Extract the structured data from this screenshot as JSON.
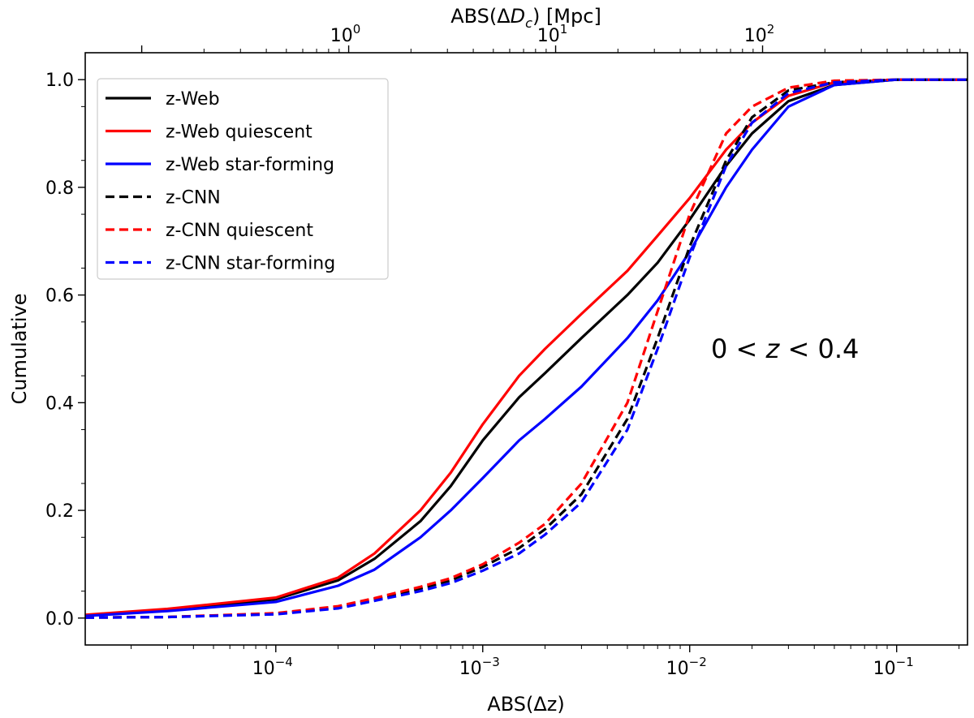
{
  "chart_data": {
    "type": "line",
    "x_scale": "log",
    "xlabel": "ABS(Δz)",
    "ylabel": "Cumulative",
    "top_axis_label": "ABS(ΔD_c) [Mpc]",
    "xlim": [
      1.2e-05,
      0.22
    ],
    "ylim": [
      -0.05,
      1.05
    ],
    "x_ticks": [
      {
        "value": 0.0001,
        "base": "10",
        "exp": "−4"
      },
      {
        "value": 0.001,
        "base": "10",
        "exp": "−3"
      },
      {
        "value": 0.01,
        "base": "10",
        "exp": "−2"
      },
      {
        "value": 0.1,
        "base": "10",
        "exp": "−1"
      }
    ],
    "top_ticks": [
      {
        "value": 1,
        "dz": 0.000225,
        "base": "10",
        "exp": "0"
      },
      {
        "value": 10,
        "dz": 0.00225,
        "base": "10",
        "exp": "1"
      },
      {
        "value": 100,
        "dz": 0.0225,
        "base": "10",
        "exp": "2"
      }
    ],
    "y_ticks": [
      "0.0",
      "0.2",
      "0.4",
      "0.6",
      "0.8",
      "1.0"
    ],
    "y_tick_values": [
      0.0,
      0.2,
      0.4,
      0.6,
      0.8,
      1.0
    ],
    "legend_position": "upper-left",
    "annotation": {
      "prefix": "0 < ",
      "var": "z",
      "suffix": " < 0.4",
      "x": 0.02,
      "y": 0.51
    },
    "series": [
      {
        "name": "z-Web",
        "color": "#000000",
        "dashed": false,
        "x": [
          1.2e-05,
          3e-05,
          0.0001,
          0.0002,
          0.0003,
          0.0005,
          0.0007,
          0.001,
          0.0015,
          0.002,
          0.003,
          0.005,
          0.007,
          0.01,
          0.015,
          0.02,
          0.03,
          0.05,
          0.1,
          0.22
        ],
        "y": [
          0.005,
          0.015,
          0.035,
          0.07,
          0.11,
          0.18,
          0.245,
          0.33,
          0.41,
          0.455,
          0.52,
          0.6,
          0.66,
          0.74,
          0.84,
          0.9,
          0.96,
          0.99,
          1.0,
          1.0
        ]
      },
      {
        "name": "z-Web quiescent",
        "color": "#ff0000",
        "dashed": false,
        "x": [
          1.2e-05,
          3e-05,
          0.0001,
          0.0002,
          0.0003,
          0.0005,
          0.0007,
          0.001,
          0.0015,
          0.002,
          0.003,
          0.005,
          0.007,
          0.01,
          0.015,
          0.02,
          0.03,
          0.05,
          0.1,
          0.22
        ],
        "y": [
          0.006,
          0.017,
          0.038,
          0.075,
          0.12,
          0.2,
          0.27,
          0.36,
          0.45,
          0.5,
          0.565,
          0.645,
          0.71,
          0.78,
          0.87,
          0.92,
          0.97,
          0.995,
          1.0,
          1.0
        ]
      },
      {
        "name": "z-Web star-forming",
        "color": "#0000ff",
        "dashed": false,
        "x": [
          1.2e-05,
          3e-05,
          0.0001,
          0.0002,
          0.0003,
          0.0005,
          0.0007,
          0.001,
          0.0015,
          0.002,
          0.003,
          0.005,
          0.007,
          0.01,
          0.015,
          0.02,
          0.03,
          0.05,
          0.1,
          0.22
        ],
        "y": [
          0.004,
          0.013,
          0.03,
          0.06,
          0.09,
          0.15,
          0.2,
          0.26,
          0.33,
          0.37,
          0.43,
          0.52,
          0.59,
          0.68,
          0.8,
          0.87,
          0.95,
          0.99,
          1.0,
          1.0
        ]
      },
      {
        "name": "z-CNN",
        "color": "#000000",
        "dashed": true,
        "x": [
          1.2e-05,
          3e-05,
          0.0001,
          0.0002,
          0.0003,
          0.0005,
          0.0007,
          0.001,
          0.0015,
          0.002,
          0.003,
          0.005,
          0.007,
          0.01,
          0.015,
          0.02,
          0.03,
          0.05,
          0.1,
          0.22
        ],
        "y": [
          0.001,
          0.002,
          0.008,
          0.02,
          0.035,
          0.055,
          0.07,
          0.095,
          0.13,
          0.165,
          0.23,
          0.37,
          0.52,
          0.69,
          0.85,
          0.93,
          0.98,
          0.995,
          1.0,
          1.0
        ]
      },
      {
        "name": "z-CNN quiescent",
        "color": "#ff0000",
        "dashed": true,
        "x": [
          1.2e-05,
          3e-05,
          0.0001,
          0.0002,
          0.0003,
          0.0005,
          0.0007,
          0.001,
          0.0015,
          0.002,
          0.003,
          0.005,
          0.007,
          0.01,
          0.015,
          0.02,
          0.03,
          0.05,
          0.1,
          0.22
        ],
        "y": [
          0.001,
          0.002,
          0.009,
          0.022,
          0.037,
          0.058,
          0.074,
          0.1,
          0.14,
          0.175,
          0.25,
          0.4,
          0.57,
          0.75,
          0.9,
          0.95,
          0.985,
          0.998,
          1.0,
          1.0
        ]
      },
      {
        "name": "z-CNN star-forming",
        "color": "#0000ff",
        "dashed": true,
        "x": [
          1.2e-05,
          3e-05,
          0.0001,
          0.0002,
          0.0003,
          0.0005,
          0.0007,
          0.001,
          0.0015,
          0.002,
          0.003,
          0.005,
          0.007,
          0.01,
          0.015,
          0.02,
          0.03,
          0.05,
          0.1,
          0.22
        ],
        "y": [
          0.0008,
          0.0018,
          0.007,
          0.018,
          0.032,
          0.05,
          0.065,
          0.088,
          0.12,
          0.155,
          0.215,
          0.35,
          0.5,
          0.67,
          0.84,
          0.92,
          0.975,
          0.995,
          1.0,
          1.0
        ]
      }
    ]
  }
}
